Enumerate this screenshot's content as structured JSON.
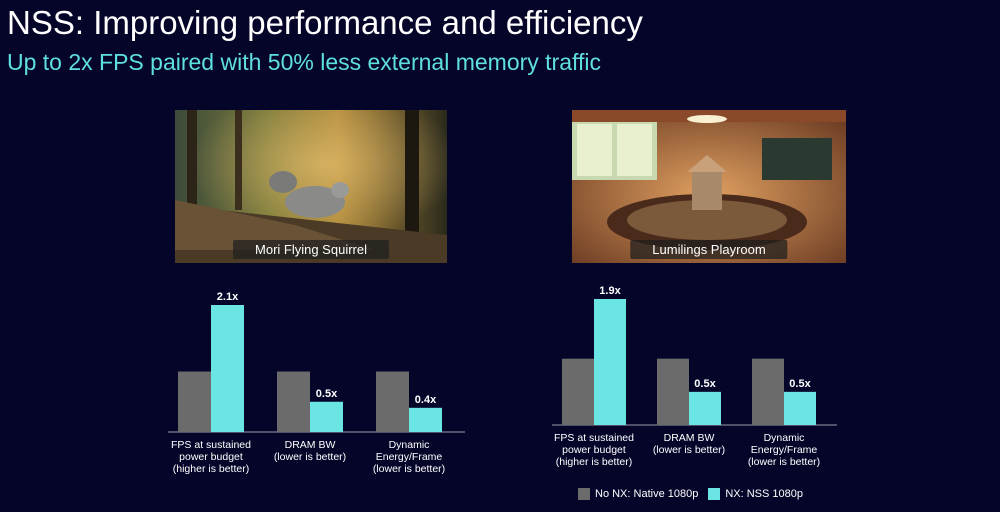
{
  "title": "NSS: Improving performance and efficiency",
  "subtitle": "Up to 2x FPS paired with 50% less external memory traffic",
  "colors": {
    "baseline": "#6b6b6b",
    "nss": "#6be4e4",
    "background": "#05052a"
  },
  "photos": [
    {
      "label": "Mori Flying Squirrel"
    },
    {
      "label": "Lumilings Playroom"
    }
  ],
  "legend": {
    "baseline": "No NX: Native 1080p",
    "nss": "NX: NSS 1080p"
  },
  "chart_data": [
    {
      "type": "bar",
      "categories": [
        [
          "FPS at sustained",
          "power budget",
          "(higher is better)"
        ],
        [
          "DRAM BW",
          "(lower is better)"
        ],
        [
          "Dynamic",
          "Energy/Frame",
          "(lower is better)"
        ]
      ],
      "series": [
        {
          "name": "No NX: Native 1080p",
          "values": [
            1.0,
            1.0,
            1.0
          ]
        },
        {
          "name": "NX: NSS 1080p",
          "values": [
            2.1,
            0.5,
            0.4
          ]
        }
      ],
      "data_labels": [
        "2.1x",
        "0.5x",
        "0.4x"
      ],
      "ylim": [
        0,
        2.1
      ],
      "grid": false
    },
    {
      "type": "bar",
      "categories": [
        [
          "FPS at sustained",
          "power budget",
          "(higher is better)"
        ],
        [
          "DRAM BW",
          "(lower is better)"
        ],
        [
          "Dynamic",
          "Energy/Frame",
          "(lower is better)"
        ]
      ],
      "series": [
        {
          "name": "No NX: Native 1080p",
          "values": [
            1.0,
            1.0,
            1.0
          ]
        },
        {
          "name": "NX: NSS 1080p",
          "values": [
            1.9,
            0.5,
            0.5
          ]
        }
      ],
      "data_labels": [
        "1.9x",
        "0.5x",
        "0.5x"
      ],
      "ylim": [
        0,
        1.9
      ],
      "grid": false
    }
  ]
}
